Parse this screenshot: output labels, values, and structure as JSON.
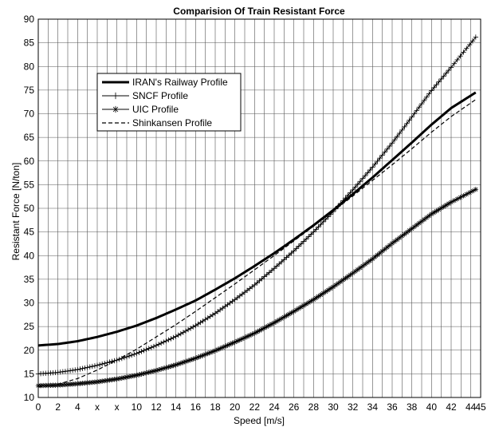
{
  "chart_data": {
    "type": "line",
    "title": "Comparision Of Train Resistant Force",
    "xlabel": "Speed [m/s]",
    "ylabel": "Resistant Force [N/ton]",
    "xlim": [
      0,
      45
    ],
    "ylim": [
      10,
      90
    ],
    "grid": true,
    "legend_position": "top-left",
    "x_ticks": [
      0,
      2,
      4,
      6,
      8,
      10,
      12,
      14,
      16,
      18,
      20,
      22,
      24,
      26,
      28,
      30,
      32,
      34,
      36,
      38,
      40,
      42,
      44,
      45
    ],
    "x_tick_labels": [
      "0",
      "2",
      "4",
      "x",
      "x",
      "10",
      "12",
      "14",
      "16",
      "18",
      "20",
      "22",
      "24",
      "26",
      "28",
      "30",
      "32",
      "34",
      "36",
      "38",
      "40",
      "42",
      "44",
      "45"
    ],
    "y_ticks": [
      10,
      15,
      20,
      25,
      30,
      35,
      40,
      45,
      50,
      55,
      60,
      65,
      70,
      75,
      80,
      85,
      90
    ],
    "y_tick_labels": [
      "10",
      "15",
      "20",
      "25",
      "30",
      "35",
      "40",
      "45",
      "50",
      "55",
      "60",
      "65",
      "70",
      "75",
      "80",
      "85",
      "90"
    ],
    "x": [
      0,
      2,
      4,
      6,
      8,
      10,
      12,
      14,
      16,
      18,
      20,
      22,
      24,
      26,
      28,
      30,
      32,
      34,
      36,
      38,
      40,
      42,
      44.5
    ],
    "series": [
      {
        "name": "IRAN's Railway Profile",
        "style": "thick",
        "color": "#000000",
        "values": [
          21.0,
          21.3,
          21.9,
          22.8,
          23.9,
          25.2,
          26.8,
          28.6,
          30.5,
          32.8,
          35.2,
          37.8,
          40.5,
          43.4,
          46.4,
          49.6,
          53.0,
          56.5,
          60.2,
          63.9,
          67.7,
          71.2,
          74.5
        ]
      },
      {
        "name": "SNCF Profile",
        "style": "plus",
        "color": "#000000",
        "values": [
          15.0,
          15.3,
          15.9,
          16.8,
          17.9,
          19.3,
          21.0,
          22.9,
          25.2,
          27.8,
          30.7,
          33.8,
          37.3,
          41.0,
          45.0,
          49.3,
          53.9,
          58.7,
          63.8,
          69.3,
          74.9,
          79.8,
          86.2
        ]
      },
      {
        "name": "UIC Profile",
        "style": "star",
        "color": "#000000",
        "values": [
          12.5,
          12.6,
          12.9,
          13.3,
          13.9,
          14.7,
          15.7,
          16.9,
          18.3,
          19.9,
          21.7,
          23.6,
          25.8,
          28.2,
          30.7,
          33.4,
          36.3,
          39.3,
          42.6,
          45.7,
          48.8,
          51.3,
          54.0
        ]
      },
      {
        "name": "Shinkansen Profile",
        "style": "dashed",
        "color": "#000000",
        "values": [
          12.2,
          12.8,
          14.0,
          15.8,
          17.9,
          20.2,
          22.8,
          25.4,
          28.2,
          31.1,
          34.0,
          37.0,
          40.0,
          43.1,
          46.2,
          49.4,
          52.6,
          55.9,
          59.2,
          62.6,
          66.1,
          69.4,
          73.0
        ]
      }
    ]
  }
}
